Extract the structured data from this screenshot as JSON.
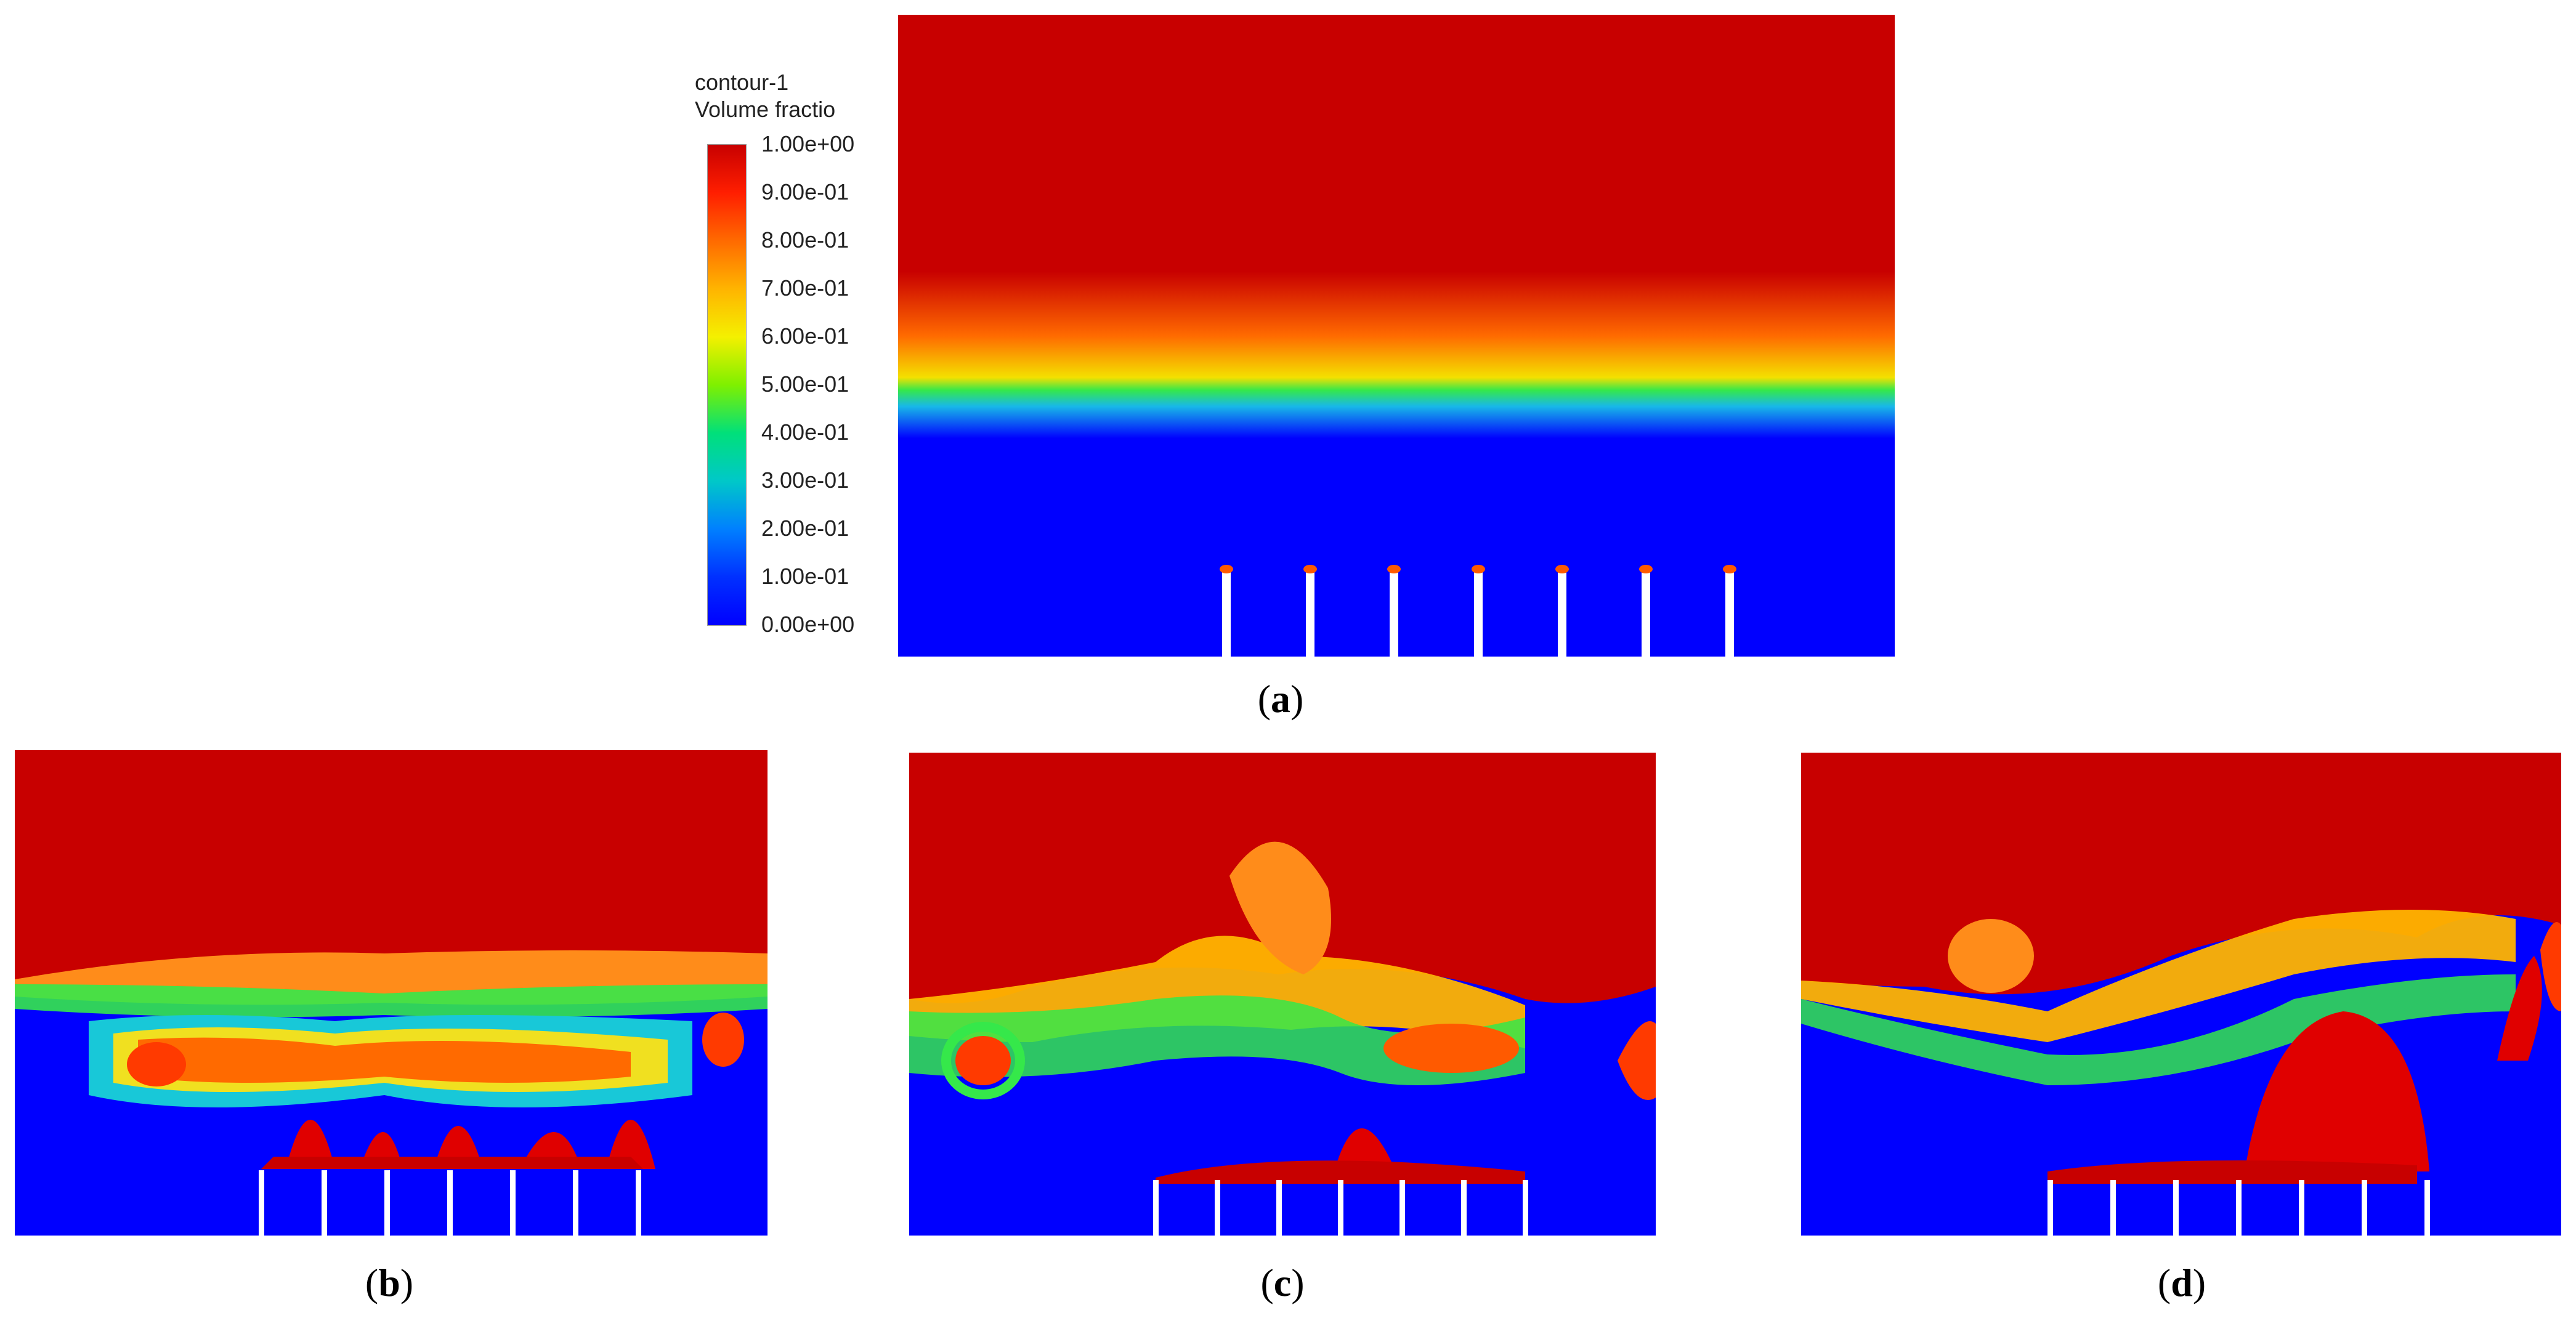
{
  "legend": {
    "title_line1": "contour-1",
    "title_line2": "Volume fractio",
    "ticks": [
      "1.00e+00",
      "9.00e-01",
      "8.00e-01",
      "7.00e-01",
      "6.00e-01",
      "5.00e-01",
      "4.00e-01",
      "3.00e-01",
      "2.00e-01",
      "1.00e-01",
      "0.00e+00"
    ],
    "colors": [
      "#c80000",
      "#ff1e00",
      "#ff6a00",
      "#ffb400",
      "#f4f000",
      "#7ff000",
      "#00e07a",
      "#00c8c8",
      "#0080ff",
      "#0030ff",
      "#0000ff"
    ]
  },
  "panels": [
    {
      "id": "a",
      "caption_open": "(",
      "caption_letter": "a",
      "caption_close": ")"
    },
    {
      "id": "b",
      "caption_open": "(",
      "caption_letter": "b",
      "caption_close": ")"
    },
    {
      "id": "c",
      "caption_open": "(",
      "caption_letter": "c",
      "caption_close": ")"
    },
    {
      "id": "d",
      "caption_open": "(",
      "caption_letter": "d",
      "caption_close": ")"
    }
  ],
  "colors": {
    "air": "#c80000",
    "water": "#0000ff",
    "interface_green": "#35e84a",
    "orange": "#ff8c1a",
    "yellow": "#f0e020",
    "cyan": "#18c8d8"
  }
}
